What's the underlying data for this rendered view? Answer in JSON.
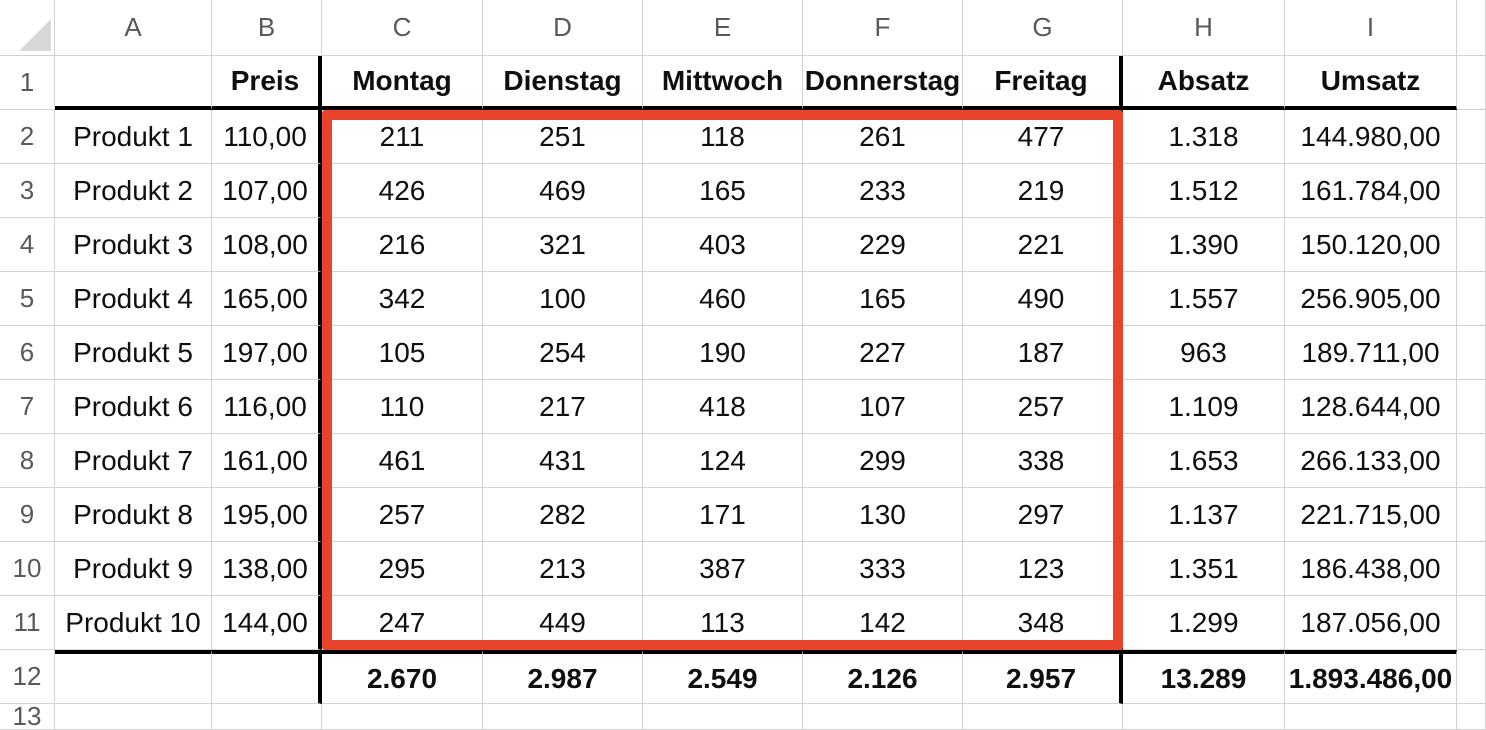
{
  "colors": {
    "highlight_border": "#e8432b",
    "table_border": "#000000",
    "gridline": "#d2d2d2",
    "header_text": "#595959"
  },
  "sheet": {
    "select_all_icon": "select-all-triangle",
    "highlight_range": "C2:G11",
    "columns": [
      "A",
      "B",
      "C",
      "D",
      "E",
      "F",
      "G",
      "H",
      "I"
    ],
    "rows": [
      {
        "num": "1",
        "bold": true,
        "cells": [
          "",
          "Preis",
          "Montag",
          "Dienstag",
          "Mittwoch",
          "Donnerstag",
          "Freitag",
          "Absatz",
          "Umsatz"
        ]
      },
      {
        "num": "2",
        "bold": false,
        "cells": [
          "Produkt 1",
          "110,00",
          "211",
          "251",
          "118",
          "261",
          "477",
          "1.318",
          "144.980,00"
        ]
      },
      {
        "num": "3",
        "bold": false,
        "cells": [
          "Produkt 2",
          "107,00",
          "426",
          "469",
          "165",
          "233",
          "219",
          "1.512",
          "161.784,00"
        ]
      },
      {
        "num": "4",
        "bold": false,
        "cells": [
          "Produkt 3",
          "108,00",
          "216",
          "321",
          "403",
          "229",
          "221",
          "1.390",
          "150.120,00"
        ]
      },
      {
        "num": "5",
        "bold": false,
        "cells": [
          "Produkt 4",
          "165,00",
          "342",
          "100",
          "460",
          "165",
          "490",
          "1.557",
          "256.905,00"
        ]
      },
      {
        "num": "6",
        "bold": false,
        "cells": [
          "Produkt 5",
          "197,00",
          "105",
          "254",
          "190",
          "227",
          "187",
          "963",
          "189.711,00"
        ]
      },
      {
        "num": "7",
        "bold": false,
        "cells": [
          "Produkt 6",
          "116,00",
          "110",
          "217",
          "418",
          "107",
          "257",
          "1.109",
          "128.644,00"
        ]
      },
      {
        "num": "8",
        "bold": false,
        "cells": [
          "Produkt 7",
          "161,00",
          "461",
          "431",
          "124",
          "299",
          "338",
          "1.653",
          "266.133,00"
        ]
      },
      {
        "num": "9",
        "bold": false,
        "cells": [
          "Produkt 8",
          "195,00",
          "257",
          "282",
          "171",
          "130",
          "297",
          "1.137",
          "221.715,00"
        ]
      },
      {
        "num": "10",
        "bold": false,
        "cells": [
          "Produkt 9",
          "138,00",
          "295",
          "213",
          "387",
          "333",
          "123",
          "1.351",
          "186.438,00"
        ]
      },
      {
        "num": "11",
        "bold": false,
        "cells": [
          "Produkt 10",
          "144,00",
          "247",
          "449",
          "113",
          "142",
          "348",
          "1.299",
          "187.056,00"
        ]
      },
      {
        "num": "12",
        "bold": true,
        "cells": [
          "",
          "",
          "2.670",
          "2.987",
          "2.549",
          "2.126",
          "2.957",
          "13.289",
          "1.893.486,00"
        ]
      },
      {
        "num": "13",
        "bold": false,
        "cells": [
          "",
          "",
          "",
          "",
          "",
          "",
          "",
          "",
          ""
        ]
      }
    ]
  }
}
